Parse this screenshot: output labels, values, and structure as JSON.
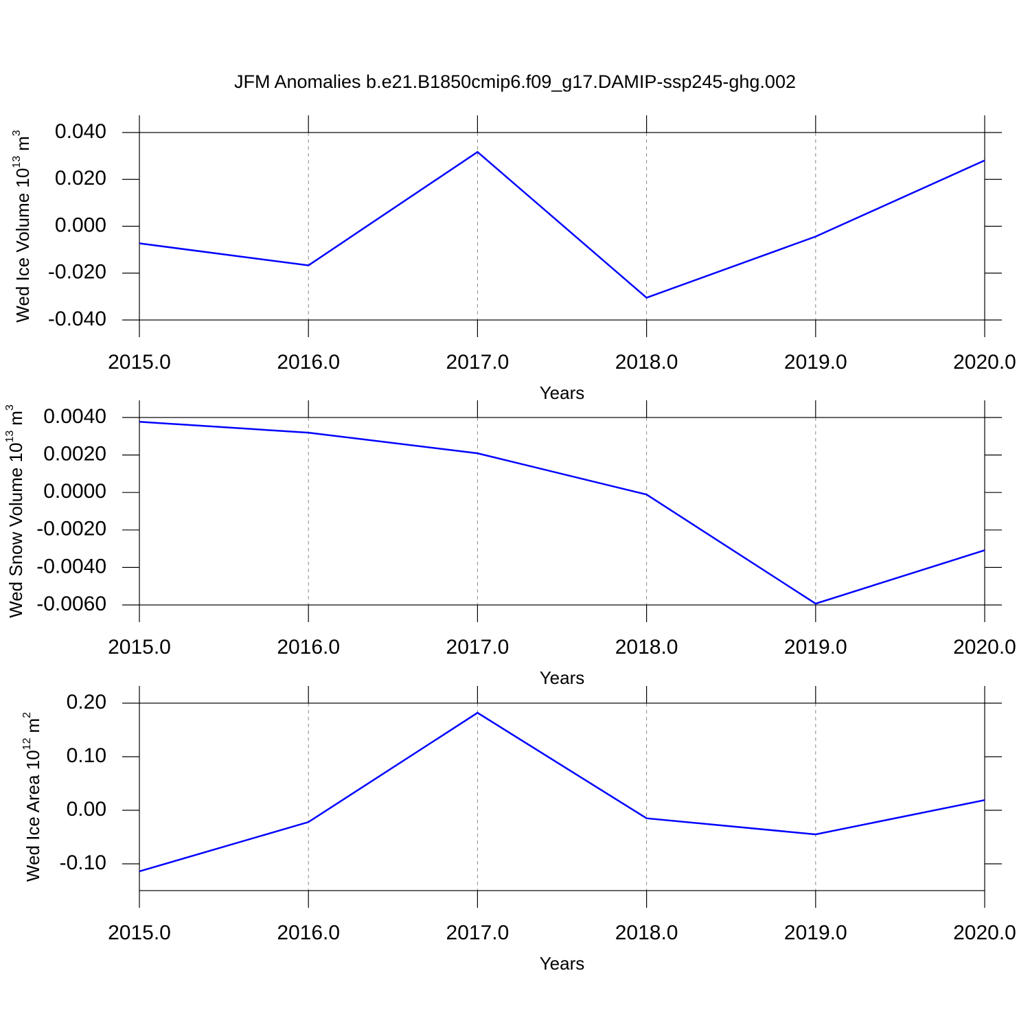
{
  "title": "JFM Anomalies b.e21.B1850cmip6.f09_g17.DAMIP-ssp245-ghg.002",
  "chart_data": [
    {
      "type": "line",
      "xlabel": "Years",
      "ylabel": "Wed Ice Volume 10",
      "ylabel_exponent": "13",
      "ylabel_unit": "m",
      "ylabel_unit_exponent": "3",
      "x": [
        2015,
        2016,
        2017,
        2018,
        2019,
        2020
      ],
      "series": [
        {
          "name": "Wed Ice Volume",
          "color": "#0000ff",
          "values": [
            -0.0073,
            -0.0167,
            0.0317,
            -0.0305,
            -0.0044,
            0.0281
          ]
        }
      ],
      "xlim": [
        2015,
        2020
      ],
      "xticks": [
        {
          "value": 2015,
          "label": "2015.0"
        },
        {
          "value": 2016,
          "label": "2016.0"
        },
        {
          "value": 2017,
          "label": "2017.0"
        },
        {
          "value": 2018,
          "label": "2018.0"
        },
        {
          "value": 2019,
          "label": "2019.0"
        },
        {
          "value": 2020,
          "label": "2020.0"
        }
      ],
      "ylim": [
        -0.04,
        0.04
      ],
      "yticks": [
        {
          "value": -0.04,
          "label": "-0.040"
        },
        {
          "value": -0.02,
          "label": "-0.020"
        },
        {
          "value": 0,
          "label": "0.000"
        },
        {
          "value": 0.02,
          "label": "0.020"
        },
        {
          "value": 0.04,
          "label": "0.040"
        }
      ],
      "grid": "x"
    },
    {
      "type": "line",
      "xlabel": "Years",
      "ylabel": "Wed Snow Volume 10",
      "ylabel_exponent": "13",
      "ylabel_unit": "m",
      "ylabel_unit_exponent": "3",
      "x": [
        2015,
        2016,
        2017,
        2018,
        2019,
        2020
      ],
      "series": [
        {
          "name": "Wed Snow Volume",
          "color": "#0000ff",
          "values": [
            0.00377,
            0.00319,
            0.00209,
            -0.00011,
            -0.00593,
            -0.00308
          ]
        }
      ],
      "xlim": [
        2015,
        2020
      ],
      "xticks": [
        {
          "value": 2015,
          "label": "2015.0"
        },
        {
          "value": 2016,
          "label": "2016.0"
        },
        {
          "value": 2017,
          "label": "2017.0"
        },
        {
          "value": 2018,
          "label": "2018.0"
        },
        {
          "value": 2019,
          "label": "2019.0"
        },
        {
          "value": 2020,
          "label": "2020.0"
        }
      ],
      "ylim": [
        -0.006,
        0.004
      ],
      "yticks": [
        {
          "value": -0.006,
          "label": "-0.0060"
        },
        {
          "value": -0.004,
          "label": "-0.0040"
        },
        {
          "value": -0.002,
          "label": "-0.0020"
        },
        {
          "value": 0,
          "label": "0.0000"
        },
        {
          "value": 0.002,
          "label": "0.0020"
        },
        {
          "value": 0.004,
          "label": "0.0040"
        }
      ],
      "grid": "x"
    },
    {
      "type": "line",
      "xlabel": "Years",
      "ylabel": "Wed Ice Area 10",
      "ylabel_exponent": "12",
      "ylabel_unit": "m",
      "ylabel_unit_exponent": "2",
      "x": [
        2015,
        2016,
        2017,
        2018,
        2019,
        2020
      ],
      "series": [
        {
          "name": "Wed Ice Area",
          "color": "#0000ff",
          "values": [
            -0.114,
            -0.022,
            0.182,
            -0.015,
            -0.045,
            0.019
          ]
        }
      ],
      "xlim": [
        2015,
        2020
      ],
      "xticks": [
        {
          "value": 2015,
          "label": "2015.0"
        },
        {
          "value": 2016,
          "label": "2016.0"
        },
        {
          "value": 2017,
          "label": "2017.0"
        },
        {
          "value": 2018,
          "label": "2018.0"
        },
        {
          "value": 2019,
          "label": "2019.0"
        },
        {
          "value": 2020,
          "label": "2020.0"
        }
      ],
      "ylim": [
        -0.15,
        0.2
      ],
      "yticks": [
        {
          "value": -0.1,
          "label": "-0.10"
        },
        {
          "value": 0,
          "label": "0.00"
        },
        {
          "value": 0.1,
          "label": "0.10"
        },
        {
          "value": 0.2,
          "label": "0.20"
        }
      ],
      "grid": "x"
    }
  ]
}
